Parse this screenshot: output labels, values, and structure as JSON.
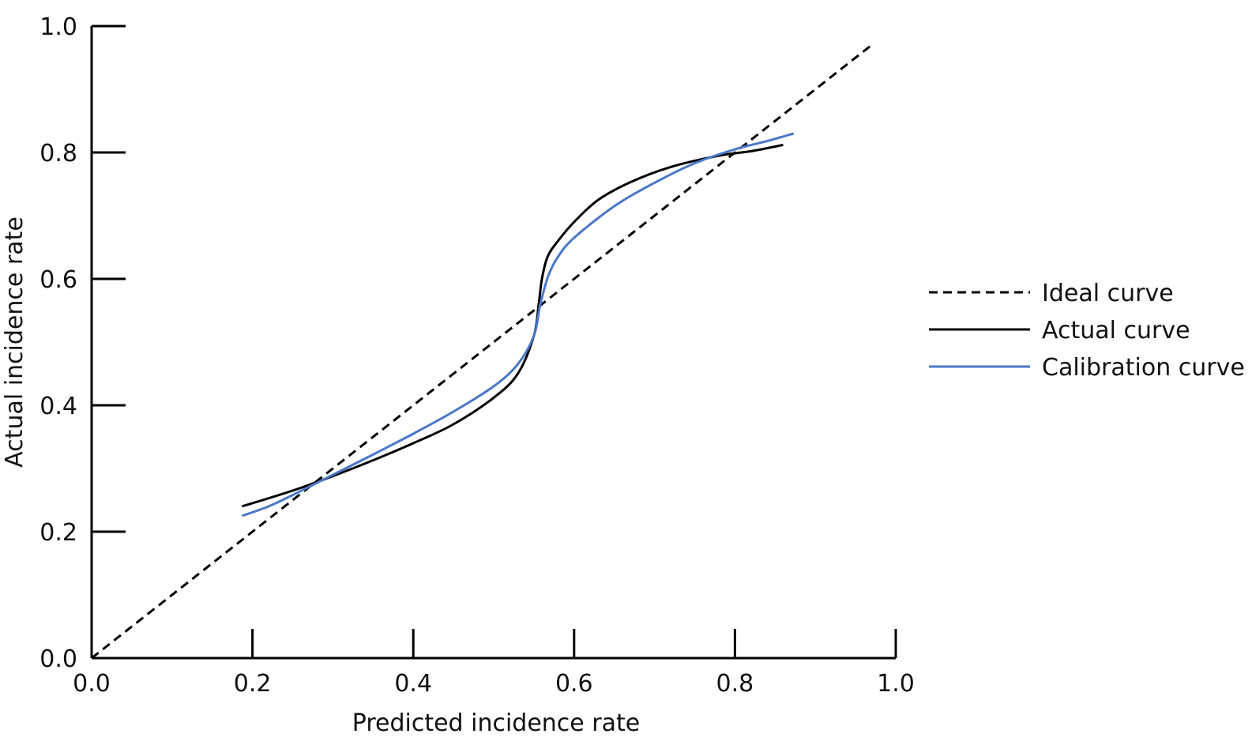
{
  "chart_data": {
    "type": "line",
    "title": "",
    "xlabel": "Predicted incidence rate",
    "ylabel": "Actual incidence rate",
    "xlim": [
      0,
      1
    ],
    "ylim": [
      0,
      1
    ],
    "x_ticks": [
      "0.0",
      "0.2",
      "0.4",
      "0.6",
      "0.8",
      "1.0"
    ],
    "y_ticks": [
      "0.0",
      "0.2",
      "0.4",
      "0.6",
      "0.8",
      "1.0"
    ],
    "grid": false,
    "legend_position": "right",
    "series": [
      {
        "name": "Ideal curve",
        "style": "dashed",
        "color": "#000000",
        "points": [
          [
            0.0,
            0.0
          ],
          [
            0.97,
            0.97
          ]
        ]
      },
      {
        "name": "Actual curve",
        "style": "solid",
        "color": "#000000",
        "points": [
          [
            0.187,
            0.24
          ],
          [
            0.25,
            0.265
          ],
          [
            0.3,
            0.288
          ],
          [
            0.35,
            0.313
          ],
          [
            0.4,
            0.34
          ],
          [
            0.45,
            0.37
          ],
          [
            0.5,
            0.412
          ],
          [
            0.53,
            0.45
          ],
          [
            0.55,
            0.51
          ],
          [
            0.556,
            0.56
          ],
          [
            0.56,
            0.6
          ],
          [
            0.567,
            0.635
          ],
          [
            0.58,
            0.66
          ],
          [
            0.6,
            0.69
          ],
          [
            0.63,
            0.725
          ],
          [
            0.67,
            0.753
          ],
          [
            0.72,
            0.777
          ],
          [
            0.78,
            0.795
          ],
          [
            0.82,
            0.802
          ],
          [
            0.86,
            0.812
          ]
        ]
      },
      {
        "name": "Calibration curve",
        "style": "solid",
        "color": "#4a77c9",
        "points": [
          [
            0.187,
            0.225
          ],
          [
            0.22,
            0.24
          ],
          [
            0.25,
            0.258
          ],
          [
            0.3,
            0.29
          ],
          [
            0.35,
            0.322
          ],
          [
            0.4,
            0.355
          ],
          [
            0.45,
            0.39
          ],
          [
            0.5,
            0.43
          ],
          [
            0.53,
            0.465
          ],
          [
            0.55,
            0.51
          ],
          [
            0.558,
            0.56
          ],
          [
            0.568,
            0.605
          ],
          [
            0.58,
            0.635
          ],
          [
            0.6,
            0.665
          ],
          [
            0.65,
            0.715
          ],
          [
            0.7,
            0.752
          ],
          [
            0.75,
            0.783
          ],
          [
            0.8,
            0.805
          ],
          [
            0.84,
            0.818
          ],
          [
            0.873,
            0.83
          ]
        ]
      }
    ]
  }
}
